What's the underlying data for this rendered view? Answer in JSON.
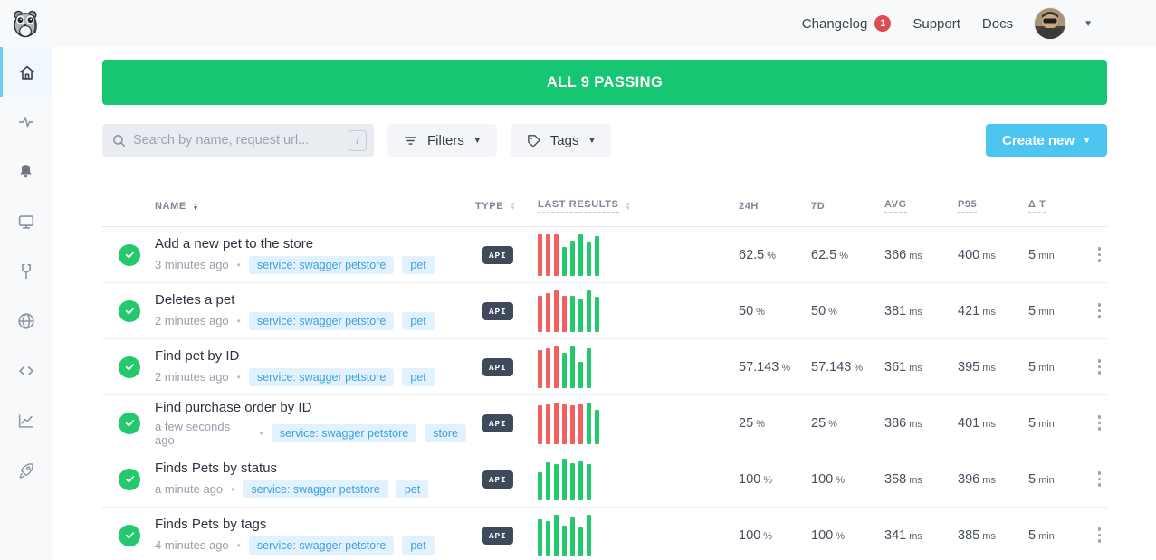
{
  "colors": {
    "banner_green": "#17c671",
    "pass_green": "#24c96d",
    "fail_red": "#f25f5f",
    "accent_blue": "#4cc6f0",
    "tag_bg": "#e1f1fd",
    "tag_text": "#3ba1e0",
    "badge_red": "#df4a53",
    "type_badge_bg": "#3f4a5a"
  },
  "topnav": {
    "changelog_label": "Changelog",
    "changelog_badge": "1",
    "support_label": "Support",
    "docs_label": "Docs"
  },
  "sidebar": {
    "items": [
      "home",
      "activity",
      "alerts",
      "dashboards",
      "maintenance",
      "locations",
      "snippets",
      "analytics",
      "quickstart"
    ]
  },
  "status_banner": {
    "label": "ALL 9 PASSING"
  },
  "toolbar": {
    "search_placeholder": "Search by name, request url...",
    "search_shortcut": "/",
    "filters_label": "Filters",
    "tags_label": "Tags",
    "create_new_label": "Create new"
  },
  "table": {
    "separator": "•",
    "columns": {
      "name": "NAME",
      "type": "TYPE",
      "results": "LAST RESULTS",
      "h24": "24H",
      "d7": "7D",
      "avg": "AVG",
      "p95": "P95",
      "dt": "Δ T"
    },
    "units": {
      "h24": "%",
      "d7": "%",
      "avg": "ms",
      "p95": "ms",
      "dt": "min"
    },
    "rows": [
      {
        "name": "Add a new pet to the store",
        "time": "3 minutes ago",
        "tags": [
          "service: swagger petstore",
          "pet"
        ],
        "type": "API",
        "bars": [
          {
            "s": "fail",
            "h": 1
          },
          {
            "s": "fail",
            "h": 1
          },
          {
            "s": "fail",
            "h": 1
          },
          {
            "s": "pass",
            "h": 0.7
          },
          {
            "s": "pass",
            "h": 0.85
          },
          {
            "s": "pass",
            "h": 1
          },
          {
            "s": "pass",
            "h": 0.82
          },
          {
            "s": "pass",
            "h": 0.95
          }
        ],
        "h24": "62.5",
        "d7": "62.5",
        "avg": "366",
        "p95": "400",
        "dt": "5"
      },
      {
        "name": "Deletes a pet",
        "time": "2 minutes ago",
        "tags": [
          "service: swagger petstore",
          "pet"
        ],
        "type": "API",
        "bars": [
          {
            "s": "fail",
            "h": 0.88
          },
          {
            "s": "fail",
            "h": 0.93
          },
          {
            "s": "fail",
            "h": 1
          },
          {
            "s": "fail",
            "h": 0.88
          },
          {
            "s": "pass",
            "h": 0.88
          },
          {
            "s": "pass",
            "h": 0.78
          },
          {
            "s": "pass",
            "h": 1
          },
          {
            "s": "pass",
            "h": 0.84
          }
        ],
        "h24": "50",
        "d7": "50",
        "avg": "381",
        "p95": "421",
        "dt": "5"
      },
      {
        "name": "Find pet by ID",
        "time": "2 minutes ago",
        "tags": [
          "service: swagger petstore",
          "pet"
        ],
        "type": "API",
        "bars": [
          {
            "s": "fail",
            "h": 0.92
          },
          {
            "s": "fail",
            "h": 0.95
          },
          {
            "s": "fail",
            "h": 1
          },
          {
            "s": "pass",
            "h": 0.85
          },
          {
            "s": "pass",
            "h": 1
          },
          {
            "s": "pass",
            "h": 0.62
          },
          {
            "s": "pass",
            "h": 0.95
          }
        ],
        "h24": "57.143",
        "d7": "57.143",
        "avg": "361",
        "p95": "395",
        "dt": "5"
      },
      {
        "name": "Find purchase order by ID",
        "time": "a few seconds ago",
        "tags": [
          "service: swagger petstore",
          "store"
        ],
        "type": "API",
        "bars": [
          {
            "s": "fail",
            "h": 0.93
          },
          {
            "s": "fail",
            "h": 0.96
          },
          {
            "s": "fail",
            "h": 1
          },
          {
            "s": "fail",
            "h": 0.95
          },
          {
            "s": "fail",
            "h": 0.93
          },
          {
            "s": "fail",
            "h": 0.96
          },
          {
            "s": "pass",
            "h": 1
          },
          {
            "s": "pass",
            "h": 0.82
          }
        ],
        "h24": "25",
        "d7": "25",
        "avg": "386",
        "p95": "401",
        "dt": "5"
      },
      {
        "name": "Finds Pets by status",
        "time": "a minute ago",
        "tags": [
          "service: swagger petstore",
          "pet"
        ],
        "type": "API",
        "bars": [
          {
            "s": "pass",
            "h": 0.68
          },
          {
            "s": "pass",
            "h": 0.92
          },
          {
            "s": "pass",
            "h": 0.88
          },
          {
            "s": "pass",
            "h": 1
          },
          {
            "s": "pass",
            "h": 0.9
          },
          {
            "s": "pass",
            "h": 0.93
          },
          {
            "s": "pass",
            "h": 0.86
          }
        ],
        "h24": "100",
        "d7": "100",
        "avg": "358",
        "p95": "396",
        "dt": "5"
      },
      {
        "name": "Finds Pets by tags",
        "time": "4 minutes ago",
        "tags": [
          "service: swagger petstore",
          "pet"
        ],
        "type": "API",
        "bars": [
          {
            "s": "pass",
            "h": 0.9
          },
          {
            "s": "pass",
            "h": 0.84
          },
          {
            "s": "pass",
            "h": 1
          },
          {
            "s": "pass",
            "h": 0.74
          },
          {
            "s": "pass",
            "h": 0.94
          },
          {
            "s": "pass",
            "h": 0.7
          },
          {
            "s": "pass",
            "h": 1
          }
        ],
        "h24": "100",
        "d7": "100",
        "avg": "341",
        "p95": "385",
        "dt": "5"
      }
    ]
  }
}
